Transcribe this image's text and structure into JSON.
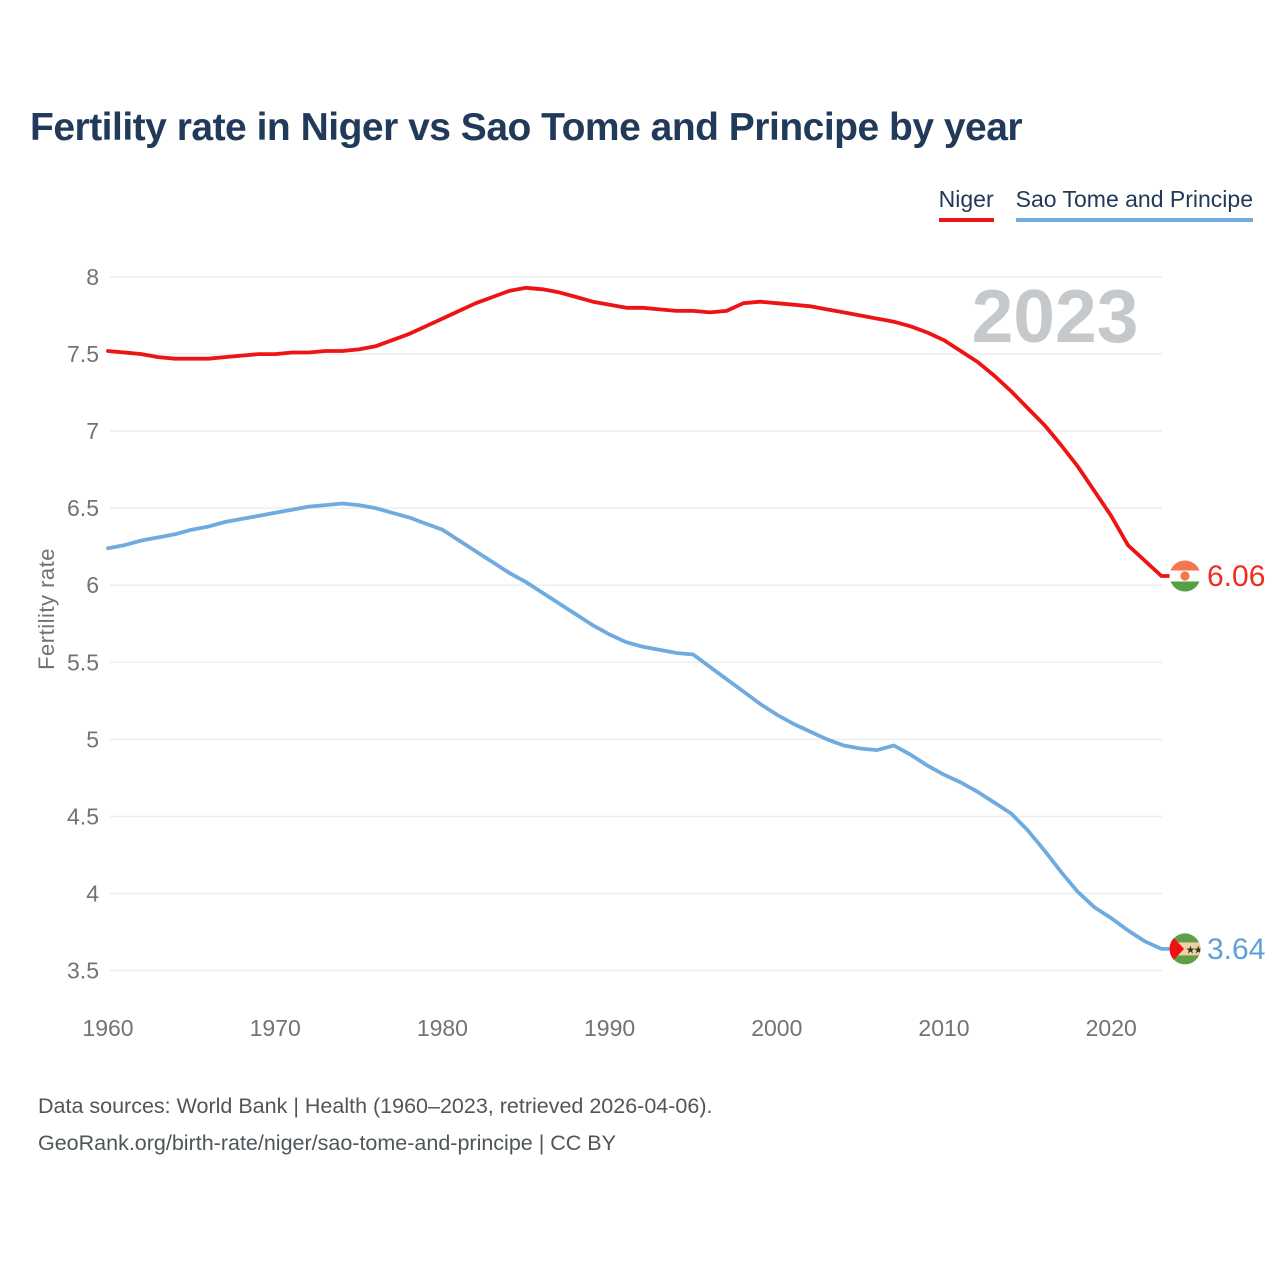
{
  "header": {
    "title": "Fertility rate in Niger vs Sao Tome and Principe by year"
  },
  "legend": {
    "items": [
      {
        "label": "Niger",
        "color": "#ee1414"
      },
      {
        "label": "Sao Tome and Principe",
        "color": "#70abdf"
      }
    ]
  },
  "watermark": "2023",
  "colors": {
    "title_text": "#213a59",
    "axis_text": "#6e7477",
    "gridline": "#ececec",
    "watermark": "#c6c9cb",
    "footer_text": "#4e565a",
    "niger_line": "#ee1414",
    "sao_tome_line": "#70abdf"
  },
  "chart_data": {
    "type": "line",
    "title": "Fertility rate in Niger vs Sao Tome and Principe by year",
    "xlabel": "",
    "ylabel": "Fertility rate",
    "xlim": [
      1960,
      2023
    ],
    "ylim": [
      3.5,
      8
    ],
    "grid": "horizontal",
    "legend_position": "top-right",
    "xticks": [
      1960,
      1970,
      1980,
      1990,
      2000,
      2010,
      2020
    ],
    "yticks": [
      "8",
      "7.5",
      "7",
      "6.5",
      "6",
      "5.5",
      "5",
      "4.5",
      "4",
      "3.5"
    ],
    "x": [
      1960,
      1961,
      1962,
      1963,
      1964,
      1965,
      1966,
      1967,
      1968,
      1969,
      1970,
      1971,
      1972,
      1973,
      1974,
      1975,
      1976,
      1977,
      1978,
      1979,
      1980,
      1981,
      1982,
      1983,
      1984,
      1985,
      1986,
      1987,
      1988,
      1989,
      1990,
      1991,
      1992,
      1993,
      1994,
      1995,
      1996,
      1997,
      1998,
      1999,
      2000,
      2001,
      2002,
      2003,
      2004,
      2005,
      2006,
      2007,
      2008,
      2009,
      2010,
      2011,
      2012,
      2013,
      2014,
      2015,
      2016,
      2017,
      2018,
      2019,
      2020,
      2021,
      2022,
      2023
    ],
    "series": [
      {
        "name": "Niger",
        "id": "niger",
        "color": "#ee1414",
        "label_color": "#f02d20",
        "end_label": "6.06",
        "end_value": 6.06,
        "flag_icon": "niger-flag-icon",
        "values": [
          7.52,
          7.51,
          7.5,
          7.48,
          7.47,
          7.47,
          7.47,
          7.48,
          7.49,
          7.5,
          7.5,
          7.51,
          7.51,
          7.52,
          7.52,
          7.53,
          7.55,
          7.59,
          7.63,
          7.68,
          7.73,
          7.78,
          7.83,
          7.87,
          7.91,
          7.93,
          7.92,
          7.9,
          7.87,
          7.84,
          7.82,
          7.8,
          7.8,
          7.79,
          7.78,
          7.78,
          7.77,
          7.78,
          7.83,
          7.84,
          7.83,
          7.82,
          7.81,
          7.79,
          7.77,
          7.75,
          7.73,
          7.71,
          7.68,
          7.64,
          7.59,
          7.52,
          7.45,
          7.36,
          7.26,
          7.15,
          7.04,
          6.91,
          6.77,
          6.61,
          6.45,
          6.26,
          6.16,
          6.06
        ]
      },
      {
        "name": "Sao Tome and Principe",
        "id": "sao-tome-and-principe",
        "color": "#70abdf",
        "label_color": "#5f9fdb",
        "end_label": "3.64",
        "end_value": 3.64,
        "flag_icon": "sao-tome-flag-icon",
        "values": [
          6.24,
          6.26,
          6.29,
          6.31,
          6.33,
          6.36,
          6.38,
          6.41,
          6.43,
          6.45,
          6.47,
          6.49,
          6.51,
          6.52,
          6.53,
          6.52,
          6.5,
          6.47,
          6.44,
          6.4,
          6.36,
          6.29,
          6.22,
          6.15,
          6.08,
          6.02,
          5.95,
          5.88,
          5.81,
          5.74,
          5.68,
          5.63,
          5.6,
          5.58,
          5.56,
          5.55,
          5.47,
          5.39,
          5.31,
          5.23,
          5.16,
          5.1,
          5.05,
          5.0,
          4.96,
          4.94,
          4.93,
          4.96,
          4.9,
          4.83,
          4.77,
          4.72,
          4.66,
          4.59,
          4.52,
          4.41,
          4.28,
          4.14,
          4.01,
          3.91,
          3.84,
          3.76,
          3.69,
          3.64
        ]
      }
    ]
  },
  "footer": {
    "line1": "Data sources: World Bank | Health (1960–2023, retrieved 2026-04-06).",
    "line2": "GeoRank.org/birth-rate/niger/sao-tome-and-principe | CC BY"
  }
}
